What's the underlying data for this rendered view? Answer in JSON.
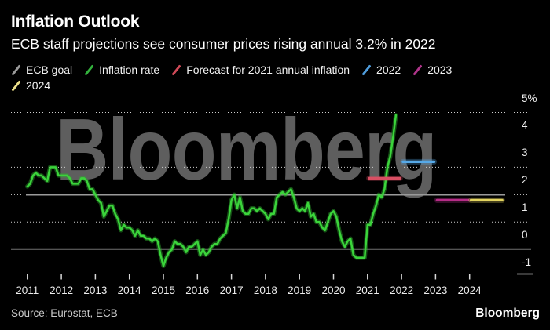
{
  "header": {
    "title": "Inflation Outlook",
    "subtitle": "ECB staff projections see consumer prices rising annual 3.2% in 2022"
  },
  "legend": {
    "items": [
      {
        "label": "ECB goal",
        "color": "#9a9a9a",
        "row": 0
      },
      {
        "label": "Inflation rate",
        "color": "#33b33d",
        "row": 0
      },
      {
        "label": "Forecast for 2021 annual inflation",
        "color": "#d04a58",
        "row": 0
      },
      {
        "label": "2022",
        "color": "#4f9ddd",
        "row": 0
      },
      {
        "label": "2023",
        "color": "#b0358b",
        "row": 0
      },
      {
        "label": "2024",
        "color": "#ece08a",
        "row": 1
      }
    ]
  },
  "watermark": {
    "text": "Bloomberg"
  },
  "footer": {
    "source": "Source: Eurostat, ECB",
    "logo": "Bloomberg"
  },
  "chart_data": {
    "type": "line",
    "title": "Inflation Outlook",
    "subtitle": "ECB staff projections see consumer prices rising annual 3.2% in 2022",
    "xlabel": "",
    "ylabel": "%",
    "ylim": [
      -1,
      5
    ],
    "x_ticks": [
      2011,
      2012,
      2013,
      2014,
      2015,
      2016,
      2017,
      2018,
      2019,
      2020,
      2021,
      2022,
      2023,
      2024
    ],
    "y_ticks": [
      {
        "value": 5,
        "label": "5%"
      },
      {
        "value": 4,
        "label": "4"
      },
      {
        "value": 3,
        "label": "3"
      },
      {
        "value": 2,
        "label": "2"
      },
      {
        "value": 1,
        "label": "1"
      },
      {
        "value": 0,
        "label": "0"
      },
      {
        "value": -1,
        "label": "-1"
      }
    ],
    "dotted_gridlines": [
      5,
      4,
      3,
      2,
      1
    ],
    "grid": true,
    "legend_position": "top",
    "series": [
      {
        "name": "ECB goal",
        "type": "hline",
        "value": 2.0,
        "color": "#9a9a9a"
      },
      {
        "name": "Inflation rate",
        "type": "line",
        "color": "#3bd43b",
        "halo_color": "#2fae2f",
        "start_year": 2011,
        "frequency": "monthly",
        "values": [
          2.3,
          2.4,
          2.7,
          2.8,
          2.7,
          2.7,
          2.6,
          2.5,
          3.0,
          3.0,
          3.0,
          2.7,
          2.7,
          2.7,
          2.7,
          2.6,
          2.4,
          2.4,
          2.4,
          2.6,
          2.6,
          2.5,
          2.2,
          2.2,
          2.0,
          1.8,
          1.7,
          1.2,
          1.4,
          1.6,
          1.6,
          1.3,
          1.1,
          0.7,
          0.9,
          0.8,
          0.8,
          0.7,
          0.5,
          0.7,
          0.5,
          0.5,
          0.4,
          0.4,
          0.3,
          0.4,
          0.3,
          -0.2,
          -0.6,
          -0.3,
          -0.1,
          0.0,
          0.3,
          0.2,
          0.2,
          0.1,
          -0.1,
          0.1,
          0.1,
          0.2,
          0.3,
          -0.2,
          0.0,
          -0.2,
          -0.1,
          0.1,
          0.2,
          0.2,
          0.4,
          0.5,
          0.6,
          1.1,
          1.8,
          2.0,
          1.5,
          1.9,
          1.4,
          1.3,
          1.3,
          1.5,
          1.5,
          1.4,
          1.5,
          1.4,
          1.3,
          1.1,
          1.3,
          1.3,
          1.9,
          2.0,
          2.1,
          2.0,
          2.1,
          2.2,
          1.9,
          1.5,
          1.4,
          1.5,
          1.4,
          1.7,
          1.2,
          1.3,
          1.0,
          1.0,
          0.8,
          0.7,
          1.0,
          1.3,
          1.4,
          1.2,
          0.7,
          0.3,
          0.1,
          0.3,
          0.4,
          -0.2,
          -0.3,
          -0.3,
          -0.3,
          -0.3,
          0.9,
          0.9,
          1.3,
          1.6,
          2.0,
          1.9,
          2.2,
          3.0,
          3.4,
          4.1,
          4.9
        ]
      },
      {
        "name": "Forecast for 2021 annual inflation",
        "type": "segment",
        "year": 2021,
        "value": 2.6,
        "color": "#d94f63"
      },
      {
        "name": "2022",
        "type": "segment",
        "year": 2022,
        "value": 3.2,
        "color": "#56a9e8"
      },
      {
        "name": "2023",
        "type": "segment",
        "year": 2023,
        "value": 1.8,
        "color": "#b52d87"
      },
      {
        "name": "2024",
        "type": "segment",
        "year": 2024,
        "value": 1.8,
        "color": "#e3d460"
      }
    ]
  }
}
